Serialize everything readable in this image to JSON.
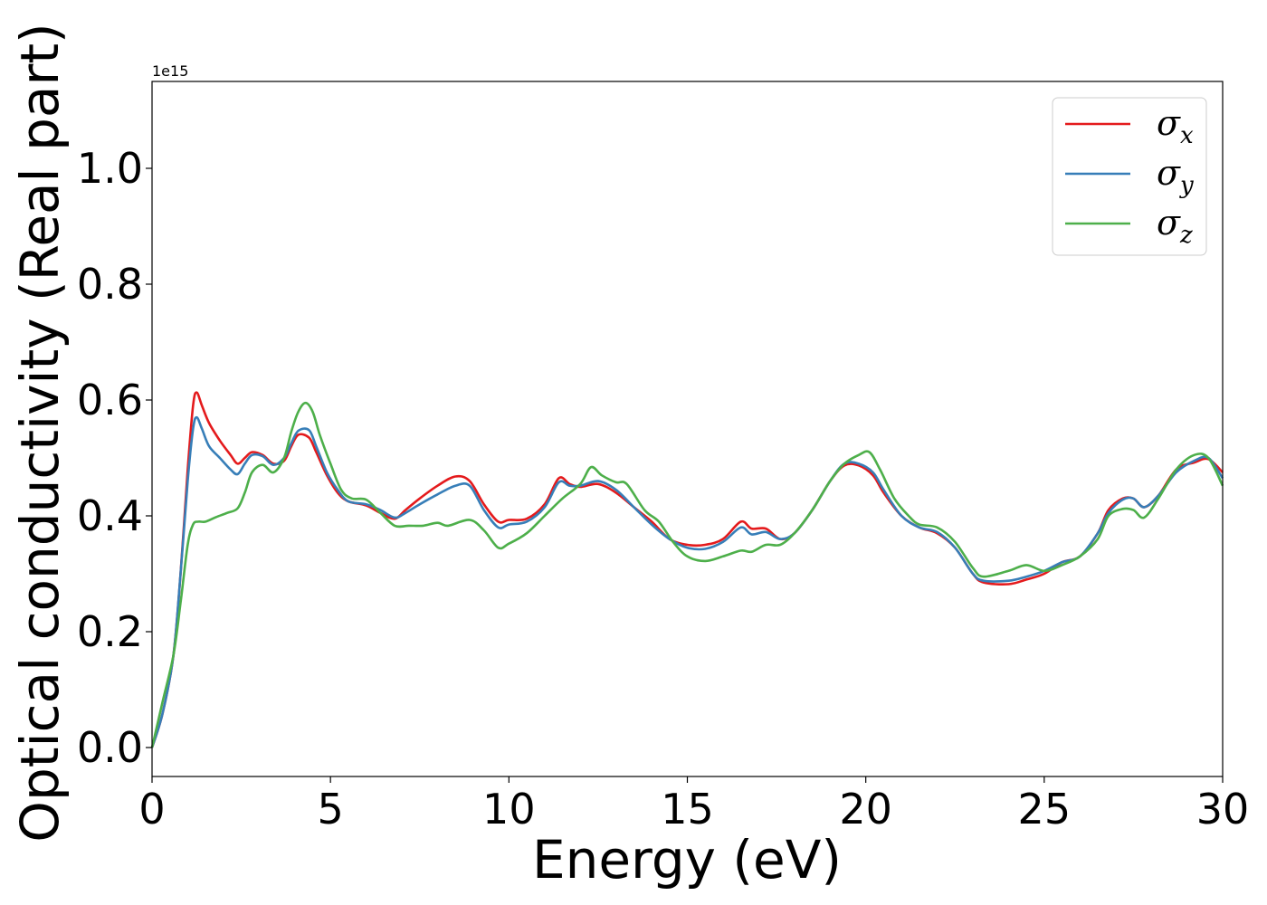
{
  "chart_data": {
    "type": "line",
    "xlabel": "Energy (eV)",
    "ylabel": "Optical conductivity (Real part)",
    "y_offset_text": "1e15",
    "xlim": [
      0,
      30
    ],
    "ylim": [
      -0.05,
      1.15
    ],
    "xticks": [
      0,
      5,
      10,
      15,
      20,
      25,
      30
    ],
    "xtick_labels": [
      "0",
      "5",
      "10",
      "15",
      "20",
      "25",
      "30"
    ],
    "yticks": [
      0.0,
      0.2,
      0.4,
      0.6,
      0.8,
      1.0
    ],
    "ytick_labels": [
      "0.0",
      "0.2",
      "0.4",
      "0.6",
      "0.8",
      "1.0"
    ],
    "grid": false,
    "legend_position": "top-right",
    "series": [
      {
        "name": "σx",
        "legend_base": "σ",
        "legend_sub": "x",
        "color": "#e41a1c",
        "points": [
          [
            0,
            0.0
          ],
          [
            0.3,
            0.06
          ],
          [
            0.6,
            0.16
          ],
          [
            0.8,
            0.3
          ],
          [
            1.0,
            0.48
          ],
          [
            1.15,
            0.59
          ],
          [
            1.25,
            0.613
          ],
          [
            1.4,
            0.59
          ],
          [
            1.6,
            0.56
          ],
          [
            1.9,
            0.53
          ],
          [
            2.2,
            0.505
          ],
          [
            2.4,
            0.49
          ],
          [
            2.6,
            0.5
          ],
          [
            2.8,
            0.51
          ],
          [
            3.1,
            0.505
          ],
          [
            3.4,
            0.49
          ],
          [
            3.7,
            0.495
          ],
          [
            3.9,
            0.52
          ],
          [
            4.1,
            0.54
          ],
          [
            4.4,
            0.535
          ],
          [
            4.6,
            0.51
          ],
          [
            4.9,
            0.47
          ],
          [
            5.2,
            0.44
          ],
          [
            5.5,
            0.425
          ],
          [
            6.0,
            0.418
          ],
          [
            6.4,
            0.405
          ],
          [
            6.8,
            0.395
          ],
          [
            7.1,
            0.41
          ],
          [
            7.5,
            0.43
          ],
          [
            8.0,
            0.452
          ],
          [
            8.5,
            0.468
          ],
          [
            8.9,
            0.46
          ],
          [
            9.3,
            0.42
          ],
          [
            9.7,
            0.39
          ],
          [
            10.0,
            0.393
          ],
          [
            10.5,
            0.395
          ],
          [
            11.0,
            0.42
          ],
          [
            11.4,
            0.465
          ],
          [
            11.7,
            0.455
          ],
          [
            12.0,
            0.45
          ],
          [
            12.5,
            0.455
          ],
          [
            13.0,
            0.44
          ],
          [
            13.5,
            0.415
          ],
          [
            14.0,
            0.39
          ],
          [
            14.5,
            0.36
          ],
          [
            15.0,
            0.35
          ],
          [
            15.5,
            0.35
          ],
          [
            16.0,
            0.36
          ],
          [
            16.5,
            0.39
          ],
          [
            16.8,
            0.378
          ],
          [
            17.2,
            0.378
          ],
          [
            17.6,
            0.36
          ],
          [
            18.0,
            0.37
          ],
          [
            18.5,
            0.41
          ],
          [
            19.0,
            0.46
          ],
          [
            19.4,
            0.487
          ],
          [
            19.8,
            0.487
          ],
          [
            20.2,
            0.47
          ],
          [
            20.5,
            0.44
          ],
          [
            21.0,
            0.4
          ],
          [
            21.5,
            0.38
          ],
          [
            22.0,
            0.37
          ],
          [
            22.5,
            0.345
          ],
          [
            23.0,
            0.3
          ],
          [
            23.3,
            0.285
          ],
          [
            24.0,
            0.282
          ],
          [
            24.5,
            0.29
          ],
          [
            25.0,
            0.3
          ],
          [
            25.5,
            0.32
          ],
          [
            26.0,
            0.33
          ],
          [
            26.5,
            0.37
          ],
          [
            26.8,
            0.41
          ],
          [
            27.2,
            0.43
          ],
          [
            27.5,
            0.43
          ],
          [
            27.8,
            0.415
          ],
          [
            28.2,
            0.435
          ],
          [
            28.7,
            0.48
          ],
          [
            29.2,
            0.492
          ],
          [
            29.6,
            0.498
          ],
          [
            30.0,
            0.475
          ]
        ]
      },
      {
        "name": "σy",
        "legend_base": "σ",
        "legend_sub": "y",
        "color": "#377eb8",
        "points": [
          [
            0,
            0.0
          ],
          [
            0.3,
            0.06
          ],
          [
            0.6,
            0.16
          ],
          [
            0.8,
            0.3
          ],
          [
            1.0,
            0.46
          ],
          [
            1.15,
            0.55
          ],
          [
            1.25,
            0.57
          ],
          [
            1.4,
            0.55
          ],
          [
            1.6,
            0.52
          ],
          [
            1.9,
            0.5
          ],
          [
            2.2,
            0.48
          ],
          [
            2.4,
            0.472
          ],
          [
            2.6,
            0.49
          ],
          [
            2.8,
            0.505
          ],
          [
            3.1,
            0.503
          ],
          [
            3.4,
            0.488
          ],
          [
            3.7,
            0.5
          ],
          [
            3.9,
            0.525
          ],
          [
            4.1,
            0.547
          ],
          [
            4.4,
            0.548
          ],
          [
            4.6,
            0.52
          ],
          [
            4.9,
            0.475
          ],
          [
            5.2,
            0.445
          ],
          [
            5.5,
            0.425
          ],
          [
            6.0,
            0.42
          ],
          [
            6.4,
            0.41
          ],
          [
            6.8,
            0.397
          ],
          [
            7.1,
            0.405
          ],
          [
            7.5,
            0.42
          ],
          [
            8.0,
            0.437
          ],
          [
            8.5,
            0.452
          ],
          [
            8.9,
            0.452
          ],
          [
            9.3,
            0.41
          ],
          [
            9.7,
            0.38
          ],
          [
            10.0,
            0.385
          ],
          [
            10.5,
            0.39
          ],
          [
            11.0,
            0.415
          ],
          [
            11.4,
            0.458
          ],
          [
            11.7,
            0.452
          ],
          [
            12.0,
            0.452
          ],
          [
            12.5,
            0.46
          ],
          [
            13.0,
            0.445
          ],
          [
            13.5,
            0.415
          ],
          [
            14.0,
            0.385
          ],
          [
            14.5,
            0.36
          ],
          [
            15.0,
            0.345
          ],
          [
            15.5,
            0.343
          ],
          [
            16.0,
            0.355
          ],
          [
            16.5,
            0.38
          ],
          [
            16.8,
            0.368
          ],
          [
            17.2,
            0.372
          ],
          [
            17.6,
            0.36
          ],
          [
            18.0,
            0.37
          ],
          [
            18.5,
            0.41
          ],
          [
            19.0,
            0.46
          ],
          [
            19.4,
            0.49
          ],
          [
            19.8,
            0.49
          ],
          [
            20.2,
            0.475
          ],
          [
            20.5,
            0.445
          ],
          [
            21.0,
            0.4
          ],
          [
            21.5,
            0.38
          ],
          [
            22.0,
            0.372
          ],
          [
            22.5,
            0.345
          ],
          [
            23.0,
            0.3
          ],
          [
            23.3,
            0.288
          ],
          [
            24.0,
            0.288
          ],
          [
            24.5,
            0.295
          ],
          [
            25.0,
            0.305
          ],
          [
            25.5,
            0.32
          ],
          [
            26.0,
            0.33
          ],
          [
            26.5,
            0.37
          ],
          [
            26.8,
            0.405
          ],
          [
            27.2,
            0.428
          ],
          [
            27.5,
            0.43
          ],
          [
            27.8,
            0.415
          ],
          [
            28.2,
            0.435
          ],
          [
            28.7,
            0.475
          ],
          [
            29.2,
            0.495
          ],
          [
            29.6,
            0.5
          ],
          [
            30.0,
            0.465
          ]
        ]
      },
      {
        "name": "σz",
        "legend_base": "σ",
        "legend_sub": "z",
        "color": "#4daf4a",
        "points": [
          [
            0,
            0.0
          ],
          [
            0.3,
            0.08
          ],
          [
            0.6,
            0.16
          ],
          [
            0.8,
            0.25
          ],
          [
            1.0,
            0.35
          ],
          [
            1.15,
            0.385
          ],
          [
            1.3,
            0.39
          ],
          [
            1.5,
            0.39
          ],
          [
            1.8,
            0.398
          ],
          [
            2.1,
            0.405
          ],
          [
            2.4,
            0.413
          ],
          [
            2.6,
            0.44
          ],
          [
            2.8,
            0.475
          ],
          [
            3.1,
            0.488
          ],
          [
            3.4,
            0.475
          ],
          [
            3.7,
            0.5
          ],
          [
            3.9,
            0.545
          ],
          [
            4.1,
            0.58
          ],
          [
            4.3,
            0.595
          ],
          [
            4.5,
            0.58
          ],
          [
            4.7,
            0.54
          ],
          [
            5.0,
            0.49
          ],
          [
            5.3,
            0.445
          ],
          [
            5.6,
            0.43
          ],
          [
            6.0,
            0.428
          ],
          [
            6.4,
            0.405
          ],
          [
            6.8,
            0.383
          ],
          [
            7.2,
            0.383
          ],
          [
            7.6,
            0.383
          ],
          [
            8.0,
            0.388
          ],
          [
            8.3,
            0.383
          ],
          [
            8.9,
            0.393
          ],
          [
            9.3,
            0.375
          ],
          [
            9.7,
            0.345
          ],
          [
            10.0,
            0.352
          ],
          [
            10.5,
            0.37
          ],
          [
            11.0,
            0.4
          ],
          [
            11.5,
            0.43
          ],
          [
            12.0,
            0.455
          ],
          [
            12.3,
            0.484
          ],
          [
            12.6,
            0.47
          ],
          [
            13.0,
            0.458
          ],
          [
            13.3,
            0.455
          ],
          [
            13.8,
            0.41
          ],
          [
            14.2,
            0.39
          ],
          [
            14.6,
            0.355
          ],
          [
            15.0,
            0.33
          ],
          [
            15.5,
            0.322
          ],
          [
            16.0,
            0.33
          ],
          [
            16.5,
            0.34
          ],
          [
            16.8,
            0.338
          ],
          [
            17.2,
            0.35
          ],
          [
            17.6,
            0.35
          ],
          [
            18.0,
            0.37
          ],
          [
            18.5,
            0.41
          ],
          [
            19.0,
            0.46
          ],
          [
            19.4,
            0.49
          ],
          [
            19.8,
            0.505
          ],
          [
            20.1,
            0.51
          ],
          [
            20.4,
            0.48
          ],
          [
            20.8,
            0.43
          ],
          [
            21.2,
            0.4
          ],
          [
            21.5,
            0.385
          ],
          [
            22.0,
            0.38
          ],
          [
            22.5,
            0.355
          ],
          [
            23.0,
            0.31
          ],
          [
            23.3,
            0.295
          ],
          [
            24.0,
            0.305
          ],
          [
            24.5,
            0.315
          ],
          [
            25.0,
            0.305
          ],
          [
            25.5,
            0.315
          ],
          [
            26.0,
            0.33
          ],
          [
            26.5,
            0.36
          ],
          [
            26.8,
            0.4
          ],
          [
            27.2,
            0.412
          ],
          [
            27.5,
            0.41
          ],
          [
            27.8,
            0.397
          ],
          [
            28.2,
            0.43
          ],
          [
            28.7,
            0.48
          ],
          [
            29.2,
            0.505
          ],
          [
            29.6,
            0.5
          ],
          [
            30.0,
            0.452
          ]
        ]
      }
    ]
  }
}
